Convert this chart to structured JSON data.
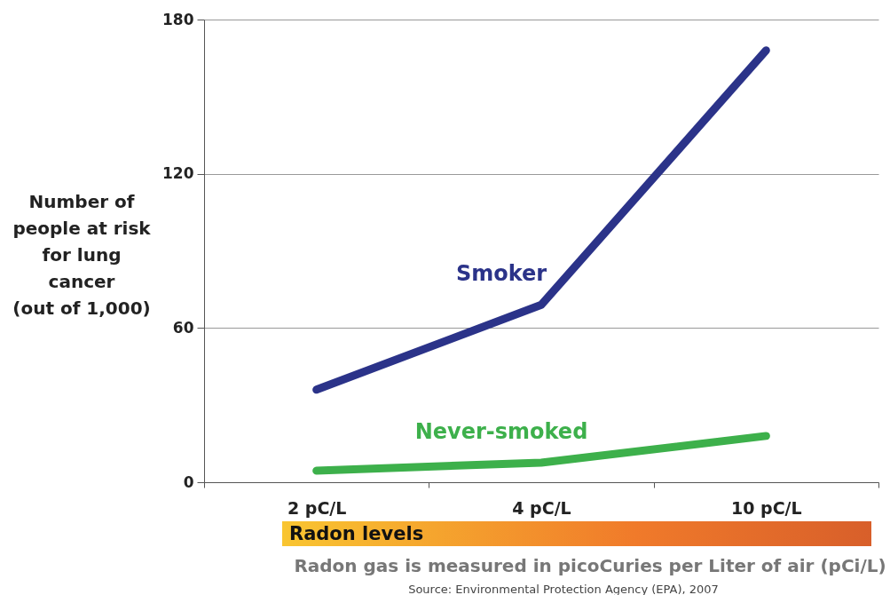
{
  "chart_data": {
    "type": "line",
    "categories": [
      "2 pC/L",
      "4 pC/L",
      "10 pC/L"
    ],
    "series": [
      {
        "name": "Smoker",
        "color": "#2b3389",
        "values": [
          36,
          69,
          168
        ]
      },
      {
        "name": "Never-smoked",
        "color": "#3db04b",
        "values": [
          4.5,
          7.6,
          18
        ]
      }
    ],
    "ylim": [
      0,
      180
    ],
    "yticks": [
      0,
      60,
      120,
      180
    ],
    "grid": "y",
    "marker": "none",
    "line_style": "solid",
    "ylabel": "Number of\npeople at risk\nfor lung\ncancer\n(out of 1,000)",
    "xlabel": "Radon levels",
    "annotations": [
      "Radon gas is measured in picoCuries per Liter of air (pCi/L)",
      "Source: Environmental Protection Agency (EPA), 2007"
    ]
  }
}
